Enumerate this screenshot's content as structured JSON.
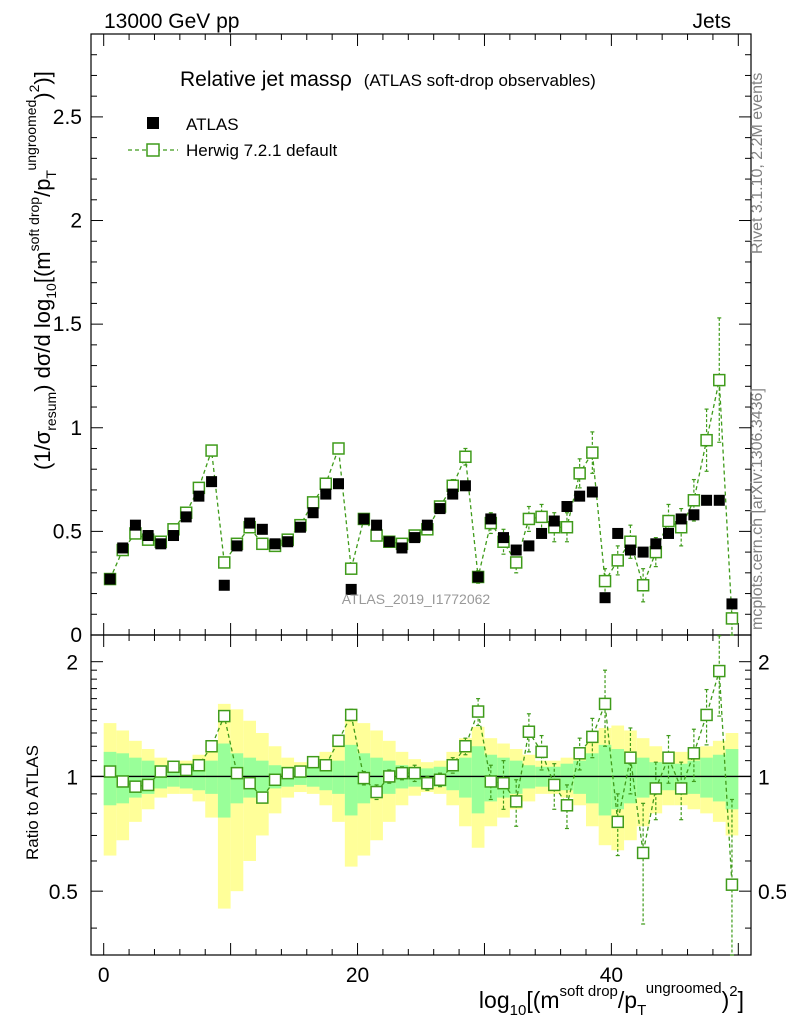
{
  "header": {
    "left": "13000 GeV pp",
    "right": "Jets"
  },
  "side_text": {
    "rivet": "Rivet 3.1.10,  2.2M events",
    "mcplots": "mcplots.cern.ch [arXiv:1306.3436]"
  },
  "watermark": "ATLAS_2019_I1772062",
  "colors": {
    "data": "#000000",
    "mc": "#3f9b1a",
    "band_inner": "#99ff99",
    "band_outer": "#ffff99",
    "frame": "#000000"
  },
  "chart_data": {
    "type": "scatter",
    "title": "Relative jet massρ",
    "subtitle": "(ATLAS soft-drop observables)",
    "xlabel": "log10[(m^{soft drop}/p_T^{ungroomed})^2]",
    "xlabel_parts": {
      "base": "log",
      "sub": "10",
      "body": "[(m",
      "sup1": "soft drop",
      "mid": "/p",
      "sub2": "T",
      "sup2": "ungroomed",
      "close": ")",
      "sup3": "2",
      "end": "]"
    },
    "ylabel": "(1/σ_resum) dσ/d log10[(m^{soft drop}/p_T^{ungroomed})^2]",
    "ylabel_parts": {
      "a": "(1/σ",
      "sub1": "resum",
      "b": ") dσ/d log",
      "sub2": "10",
      "c": "[(m",
      "sup1": "soft drop",
      "d": "/p",
      "sub3": "T",
      "sup2": "ungroomed",
      "e": ")",
      "sup3": "2",
      "f": ")]"
    },
    "ratio_ylabel": "Ratio to ATLAS",
    "xlim": [
      -1,
      51
    ],
    "ylim": [
      0,
      2.9
    ],
    "ratio_ylim": [
      0.34,
      2.35
    ],
    "xticks": [
      0,
      20,
      40
    ],
    "yticks": [
      0.5,
      1,
      1.5,
      2,
      2.5
    ],
    "ytick_labels": [
      "0.5",
      "1",
      "1.5",
      "2",
      "2.5"
    ],
    "ymin_label": "0",
    "ratio_yticks": [
      0.5,
      1,
      2
    ],
    "ratio_ytick_labels": [
      "0.5",
      "1",
      "2"
    ],
    "legend": {
      "position": "top-left",
      "entries": [
        "ATLAS",
        "Herwig 7.2.1 default"
      ]
    },
    "x": [
      0.5,
      1.5,
      2.5,
      3.5,
      4.5,
      5.5,
      6.5,
      7.5,
      8.5,
      9.5,
      10.5,
      11.5,
      12.5,
      13.5,
      14.5,
      15.5,
      16.5,
      17.5,
      18.5,
      19.5,
      20.5,
      21.5,
      22.5,
      23.5,
      24.5,
      25.5,
      26.5,
      27.5,
      28.5,
      29.5,
      30.5,
      31.5,
      32.5,
      33.5,
      34.5,
      35.5,
      36.5,
      37.5,
      38.5,
      39.5,
      40.5,
      41.5,
      42.5,
      43.5,
      44.5,
      45.5,
      46.5,
      47.5,
      48.5,
      49.5
    ],
    "series": [
      {
        "name": "ATLAS",
        "values": [
          0.27,
          0.42,
          0.53,
          0.48,
          0.44,
          0.48,
          0.57,
          0.67,
          0.74,
          0.24,
          0.43,
          0.54,
          0.51,
          0.44,
          0.45,
          0.52,
          0.59,
          0.68,
          0.73,
          0.22,
          0.56,
          0.53,
          0.45,
          0.42,
          0.47,
          0.53,
          0.61,
          0.68,
          0.72,
          0.28,
          0.56,
          0.47,
          0.41,
          0.43,
          0.49,
          0.55,
          0.62,
          0.67,
          0.69,
          0.18,
          0.49,
          0.41,
          0.4,
          0.44,
          0.49,
          0.56,
          0.58,
          0.65,
          0.65,
          0.15
        ]
      },
      {
        "name": "Herwig 7.2.1 default",
        "values": [
          0.27,
          0.41,
          0.49,
          0.46,
          0.45,
          0.51,
          0.59,
          0.71,
          0.89,
          0.35,
          0.44,
          0.52,
          0.44,
          0.43,
          0.46,
          0.53,
          0.64,
          0.73,
          0.9,
          0.32,
          0.56,
          0.48,
          0.45,
          0.44,
          0.48,
          0.51,
          0.62,
          0.72,
          0.86,
          0.28,
          0.54,
          0.45,
          0.35,
          0.56,
          0.57,
          0.52,
          0.52,
          0.78,
          0.88,
          0.26,
          0.36,
          0.45,
          0.24,
          0.4,
          0.55,
          0.52,
          0.65,
          0.94,
          1.23,
          0.08
        ],
        "errors": [
          0.01,
          0.01,
          0.01,
          0.01,
          0.01,
          0.01,
          0.01,
          0.02,
          0.02,
          0.01,
          0.01,
          0.01,
          0.01,
          0.01,
          0.01,
          0.01,
          0.01,
          0.02,
          0.02,
          0.01,
          0.02,
          0.02,
          0.02,
          0.02,
          0.02,
          0.02,
          0.02,
          0.03,
          0.04,
          0.03,
          0.05,
          0.06,
          0.05,
          0.06,
          0.06,
          0.07,
          0.07,
          0.07,
          0.1,
          0.06,
          0.07,
          0.08,
          0.08,
          0.07,
          0.08,
          0.09,
          0.1,
          0.15,
          0.3,
          0.08
        ]
      }
    ],
    "ratio": {
      "herwig": [
        1.03,
        0.97,
        0.94,
        0.95,
        1.03,
        1.06,
        1.04,
        1.07,
        1.2,
        1.44,
        1.02,
        0.96,
        0.88,
        0.98,
        1.02,
        1.03,
        1.09,
        1.07,
        1.24,
        1.45,
        0.99,
        0.91,
        1.0,
        1.02,
        1.02,
        0.96,
        0.98,
        1.07,
        1.2,
        1.48,
        0.97,
        0.96,
        0.86,
        1.31,
        1.16,
        0.95,
        0.84,
        1.15,
        1.27,
        1.55,
        0.76,
        1.12,
        0.63,
        0.93,
        1.12,
        0.93,
        1.15,
        1.45,
        1.89,
        0.52
      ],
      "herwig_err": [
        0.02,
        0.02,
        0.02,
        0.02,
        0.02,
        0.02,
        0.02,
        0.03,
        0.03,
        0.04,
        0.02,
        0.02,
        0.02,
        0.02,
        0.02,
        0.02,
        0.02,
        0.03,
        0.03,
        0.05,
        0.04,
        0.04,
        0.04,
        0.04,
        0.05,
        0.04,
        0.04,
        0.05,
        0.06,
        0.12,
        0.1,
        0.14,
        0.12,
        0.15,
        0.12,
        0.13,
        0.11,
        0.11,
        0.15,
        0.35,
        0.14,
        0.22,
        0.22,
        0.16,
        0.16,
        0.16,
        0.18,
        0.24,
        0.45,
        0.35
      ],
      "band_inner": [
        0.16,
        0.15,
        0.12,
        0.1,
        0.07,
        0.06,
        0.07,
        0.08,
        0.1,
        0.22,
        0.15,
        0.12,
        0.1,
        0.07,
        0.06,
        0.05,
        0.06,
        0.08,
        0.1,
        0.21,
        0.15,
        0.12,
        0.1,
        0.07,
        0.06,
        0.05,
        0.06,
        0.08,
        0.12,
        0.2,
        0.14,
        0.12,
        0.1,
        0.07,
        0.06,
        0.06,
        0.08,
        0.1,
        0.15,
        0.21,
        0.18,
        0.15,
        0.12,
        0.09,
        0.08,
        0.08,
        0.1,
        0.12,
        0.14,
        0.18
      ],
      "band_outer": [
        0.38,
        0.32,
        0.24,
        0.18,
        0.12,
        0.1,
        0.1,
        0.14,
        0.22,
        0.55,
        0.5,
        0.4,
        0.3,
        0.2,
        0.12,
        0.09,
        0.1,
        0.16,
        0.24,
        0.42,
        0.38,
        0.32,
        0.24,
        0.16,
        0.11,
        0.09,
        0.1,
        0.16,
        0.26,
        0.35,
        0.26,
        0.22,
        0.18,
        0.14,
        0.1,
        0.1,
        0.12,
        0.16,
        0.26,
        0.34,
        0.36,
        0.32,
        0.26,
        0.2,
        0.16,
        0.16,
        0.18,
        0.2,
        0.24,
        0.3
      ]
    }
  }
}
